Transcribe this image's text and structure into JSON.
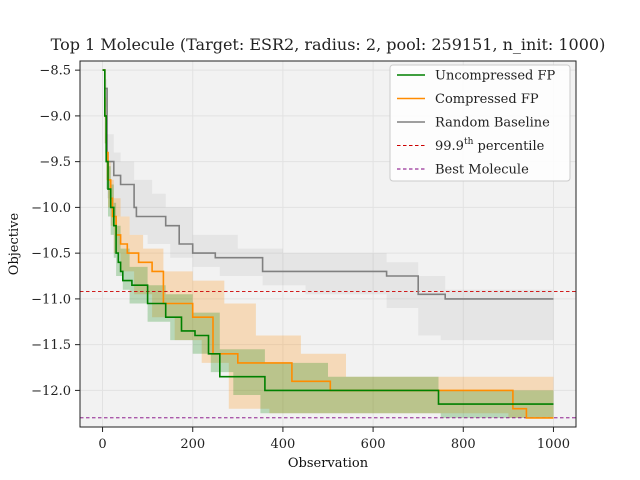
{
  "chart_data": {
    "type": "line",
    "title": "Top 1 Molecule (Target: ESR2, radius: 2, pool: 259151,  n_init: 1000)",
    "xlabel": "Observation",
    "ylabel": "Objective",
    "xlim": [
      -50,
      1050
    ],
    "ylim": [
      -12.4,
      -8.4
    ],
    "xticks": [
      0,
      200,
      400,
      600,
      800,
      1000
    ],
    "yticks": [
      -8.5,
      -9.0,
      -9.5,
      -10.0,
      -10.5,
      -11.0,
      -11.5,
      -12.0
    ],
    "grid": true,
    "legend_position": "top-right",
    "series": [
      {
        "name": "Uncompressed FP",
        "color": "#008000",
        "mean": [
          [
            0,
            -8.5
          ],
          [
            5,
            -9.0
          ],
          [
            8,
            -9.5
          ],
          [
            12,
            -9.8
          ],
          [
            18,
            -10.0
          ],
          [
            25,
            -10.2
          ],
          [
            30,
            -10.5
          ],
          [
            35,
            -10.6
          ],
          [
            40,
            -10.7
          ],
          [
            45,
            -10.8
          ],
          [
            65,
            -10.85
          ],
          [
            100,
            -11.05
          ],
          [
            140,
            -11.2
          ],
          [
            175,
            -11.35
          ],
          [
            205,
            -11.4
          ],
          [
            235,
            -11.6
          ],
          [
            260,
            -11.85
          ],
          [
            360,
            -12.0
          ],
          [
            500,
            -12.0
          ],
          [
            745,
            -12.15
          ],
          [
            1000,
            -12.15
          ]
        ],
        "lower": [
          [
            0,
            -8.5
          ],
          [
            5,
            -9.3
          ],
          [
            8,
            -9.8
          ],
          [
            12,
            -10.1
          ],
          [
            18,
            -10.3
          ],
          [
            25,
            -10.55
          ],
          [
            30,
            -10.75
          ],
          [
            45,
            -10.9
          ],
          [
            60,
            -11.05
          ],
          [
            100,
            -11.25
          ],
          [
            150,
            -11.45
          ],
          [
            200,
            -11.6
          ],
          [
            240,
            -11.8
          ],
          [
            290,
            -12.05
          ],
          [
            350,
            -12.25
          ],
          [
            500,
            -12.25
          ],
          [
            750,
            -12.3
          ],
          [
            1000,
            -12.3
          ]
        ],
        "upper": [
          [
            0,
            -8.5
          ],
          [
            5,
            -8.7
          ],
          [
            8,
            -9.2
          ],
          [
            12,
            -9.55
          ],
          [
            18,
            -9.75
          ],
          [
            25,
            -9.95
          ],
          [
            30,
            -10.2
          ],
          [
            40,
            -10.45
          ],
          [
            60,
            -10.65
          ],
          [
            100,
            -10.85
          ],
          [
            140,
            -10.95
          ],
          [
            200,
            -11.15
          ],
          [
            260,
            -11.55
          ],
          [
            360,
            -11.7
          ],
          [
            500,
            -11.85
          ],
          [
            745,
            -12.0
          ],
          [
            1000,
            -12.0
          ]
        ]
      },
      {
        "name": "Compressed FP",
        "color": "#ff8c00",
        "mean": [
          [
            0,
            -8.5
          ],
          [
            5,
            -9.0
          ],
          [
            8,
            -9.4
          ],
          [
            12,
            -9.7
          ],
          [
            18,
            -9.9
          ],
          [
            22,
            -10.1
          ],
          [
            30,
            -10.3
          ],
          [
            40,
            -10.4
          ],
          [
            55,
            -10.5
          ],
          [
            80,
            -10.6
          ],
          [
            110,
            -10.7
          ],
          [
            135,
            -11.05
          ],
          [
            200,
            -11.2
          ],
          [
            245,
            -11.6
          ],
          [
            300,
            -11.7
          ],
          [
            420,
            -11.9
          ],
          [
            505,
            -12.0
          ],
          [
            910,
            -12.2
          ],
          [
            940,
            -12.3
          ],
          [
            1000,
            -12.3
          ]
        ],
        "lower": [
          [
            0,
            -8.5
          ],
          [
            5,
            -9.3
          ],
          [
            8,
            -9.7
          ],
          [
            12,
            -10.0
          ],
          [
            18,
            -10.2
          ],
          [
            25,
            -10.5
          ],
          [
            40,
            -10.7
          ],
          [
            70,
            -10.95
          ],
          [
            110,
            -11.2
          ],
          [
            160,
            -11.45
          ],
          [
            220,
            -11.7
          ],
          [
            280,
            -12.2
          ],
          [
            370,
            -12.25
          ],
          [
            600,
            -12.25
          ],
          [
            900,
            -12.3
          ],
          [
            1000,
            -12.3
          ]
        ],
        "upper": [
          [
            0,
            -8.5
          ],
          [
            5,
            -8.8
          ],
          [
            8,
            -9.2
          ],
          [
            12,
            -9.5
          ],
          [
            18,
            -9.7
          ],
          [
            25,
            -9.9
          ],
          [
            40,
            -10.1
          ],
          [
            60,
            -10.3
          ],
          [
            90,
            -10.45
          ],
          [
            135,
            -10.7
          ],
          [
            200,
            -10.8
          ],
          [
            270,
            -11.05
          ],
          [
            340,
            -11.4
          ],
          [
            440,
            -11.6
          ],
          [
            540,
            -11.85
          ],
          [
            1000,
            -11.85
          ]
        ]
      },
      {
        "name": "Random Baseline",
        "color": "#808080",
        "mean": [
          [
            0,
            -8.5
          ],
          [
            5,
            -8.7
          ],
          [
            10,
            -9.5
          ],
          [
            25,
            -9.65
          ],
          [
            40,
            -9.75
          ],
          [
            70,
            -10.0
          ],
          [
            75,
            -10.1
          ],
          [
            140,
            -10.2
          ],
          [
            170,
            -10.4
          ],
          [
            200,
            -10.5
          ],
          [
            250,
            -10.55
          ],
          [
            355,
            -10.7
          ],
          [
            630,
            -10.75
          ],
          [
            700,
            -10.95
          ],
          [
            760,
            -11.0
          ],
          [
            1000,
            -11.0
          ]
        ],
        "lower": [
          [
            0,
            -8.5
          ],
          [
            5,
            -8.9
          ],
          [
            10,
            -9.9
          ],
          [
            25,
            -10.1
          ],
          [
            60,
            -10.3
          ],
          [
            100,
            -10.4
          ],
          [
            150,
            -10.55
          ],
          [
            200,
            -10.65
          ],
          [
            260,
            -10.75
          ],
          [
            355,
            -10.85
          ],
          [
            450,
            -10.95
          ],
          [
            630,
            -11.1
          ],
          [
            700,
            -11.4
          ],
          [
            750,
            -11.45
          ],
          [
            1000,
            -11.45
          ]
        ],
        "upper": [
          [
            0,
            -8.5
          ],
          [
            5,
            -8.6
          ],
          [
            10,
            -9.2
          ],
          [
            25,
            -9.4
          ],
          [
            40,
            -9.5
          ],
          [
            70,
            -9.7
          ],
          [
            110,
            -9.85
          ],
          [
            140,
            -10.0
          ],
          [
            200,
            -10.3
          ],
          [
            300,
            -10.45
          ],
          [
            400,
            -10.5
          ],
          [
            630,
            -10.6
          ],
          [
            700,
            -10.75
          ],
          [
            760,
            -10.9
          ],
          [
            1000,
            -10.9
          ]
        ]
      }
    ],
    "reference_lines": [
      {
        "name": "99.9th percentile",
        "name_base": "99.9",
        "name_sup": "th",
        "name_rest": " percentile",
        "y": -10.92,
        "color": "#cc0000",
        "style": "dashed"
      },
      {
        "name": "Best Molecule",
        "y": -12.3,
        "color": "#800080",
        "style": "dashed"
      }
    ]
  }
}
